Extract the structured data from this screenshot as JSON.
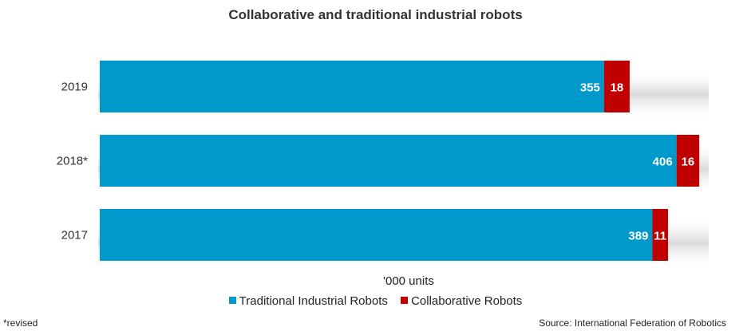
{
  "chart_data": {
    "type": "bar",
    "orientation": "horizontal",
    "stacked": true,
    "title": "Collaborative and traditional industrial robots",
    "xlabel": "'000 units",
    "categories": [
      "2019",
      "2018*",
      "2017"
    ],
    "series": [
      {
        "name": "Traditional Industrial Robots",
        "values": [
          355,
          406,
          389
        ],
        "color": "#0099cc"
      },
      {
        "name": "Collaborative Robots",
        "values": [
          18,
          16,
          11
        ],
        "color": "#c00000"
      }
    ],
    "xlim": [
      0,
      430
    ],
    "grid": false,
    "legend": "bottom",
    "footnote": "*revised",
    "source": "Source: International Federation of Robotics"
  }
}
